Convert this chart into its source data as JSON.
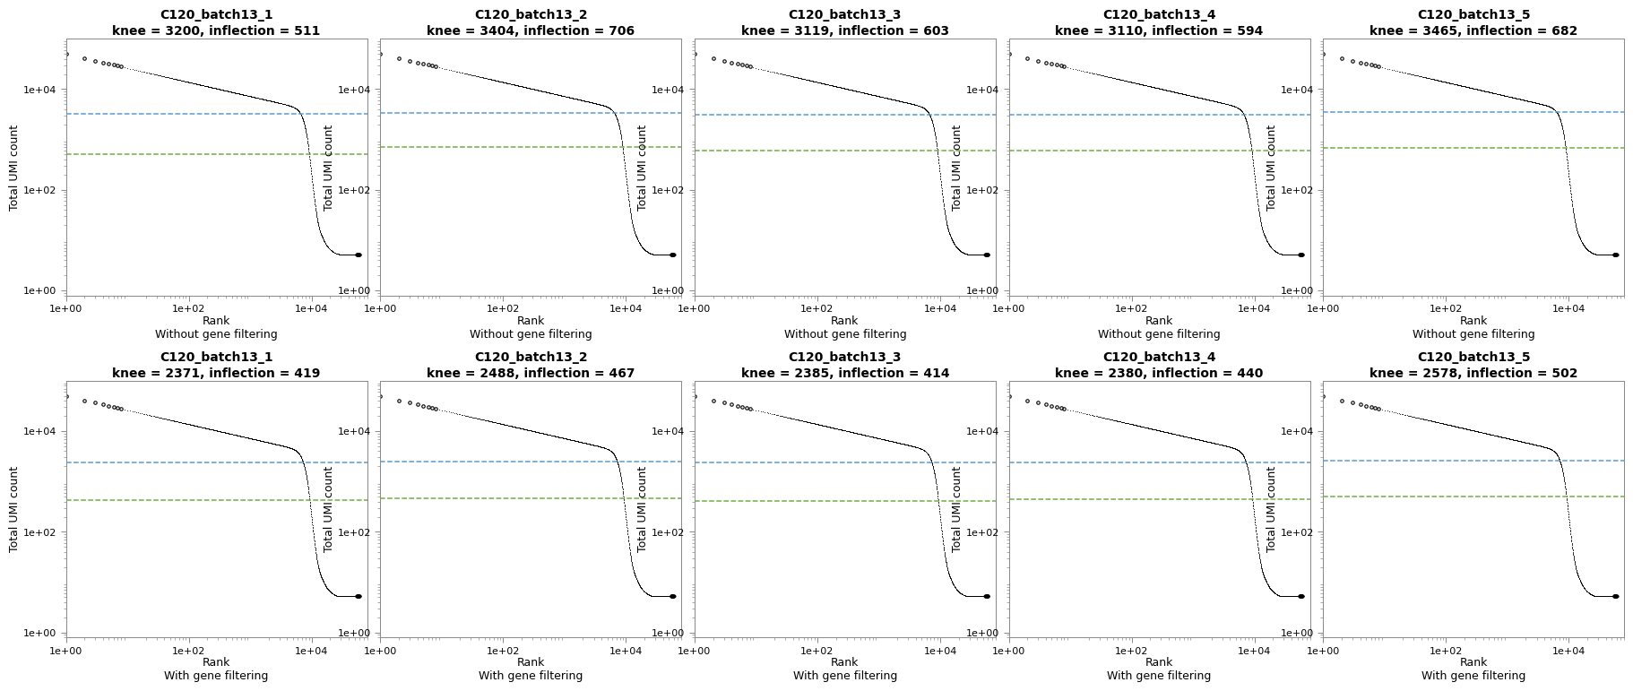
{
  "panels": [
    {
      "row": 0,
      "col": 0,
      "title": "C120_batch13_1",
      "subtitle": "knee = 3200, inflection = 511",
      "knee": 3200,
      "inflection": 511,
      "xlabel": "Rank",
      "xlabel2": "Without gene filtering"
    },
    {
      "row": 0,
      "col": 1,
      "title": "C120_batch13_2",
      "subtitle": "knee = 3404, inflection = 706",
      "knee": 3404,
      "inflection": 706,
      "xlabel": "Rank",
      "xlabel2": "Without gene filtering"
    },
    {
      "row": 0,
      "col": 2,
      "title": "C120_batch13_3",
      "subtitle": "knee = 3119, inflection = 603",
      "knee": 3119,
      "inflection": 603,
      "xlabel": "Rank",
      "xlabel2": "Without gene filtering"
    },
    {
      "row": 0,
      "col": 3,
      "title": "C120_batch13_4",
      "subtitle": "knee = 3110, inflection = 594",
      "knee": 3110,
      "inflection": 594,
      "xlabel": "Rank",
      "xlabel2": "Without gene filtering"
    },
    {
      "row": 0,
      "col": 4,
      "title": "C120_batch13_5",
      "subtitle": "knee = 3465, inflection = 682",
      "knee": 3465,
      "inflection": 682,
      "xlabel": "Rank",
      "xlabel2": "Without gene filtering"
    },
    {
      "row": 1,
      "col": 0,
      "title": "C120_batch13_1",
      "subtitle": "knee = 2371, inflection = 419",
      "knee": 2371,
      "inflection": 419,
      "xlabel": "Rank",
      "xlabel2": "With gene filtering"
    },
    {
      "row": 1,
      "col": 1,
      "title": "C120_batch13_2",
      "subtitle": "knee = 2488, inflection = 467",
      "knee": 2488,
      "inflection": 467,
      "xlabel": "Rank",
      "xlabel2": "With gene filtering"
    },
    {
      "row": 1,
      "col": 2,
      "title": "C120_batch13_3",
      "subtitle": "knee = 2385, inflection = 414",
      "knee": 2385,
      "inflection": 414,
      "xlabel": "Rank",
      "xlabel2": "With gene filtering"
    },
    {
      "row": 1,
      "col": 3,
      "title": "C120_batch13_4",
      "subtitle": "knee = 2380, inflection = 440",
      "knee": 2380,
      "inflection": 440,
      "xlabel": "Rank",
      "xlabel2": "With gene filtering"
    },
    {
      "row": 1,
      "col": 4,
      "title": "C120_batch13_5",
      "subtitle": "knee = 2578, inflection = 502",
      "knee": 2578,
      "inflection": 502,
      "xlabel": "Rank",
      "xlabel2": "With gene filtering"
    }
  ],
  "blue_color": "#5b9bd5",
  "green_color": "#70ad47",
  "curve_color": "#000000",
  "background_color": "#ffffff",
  "title_fontsize": 10,
  "axis_label_fontsize": 9,
  "tick_fontsize": 8,
  "ylabel": "Total UMI count",
  "xlim_log": [
    1,
    80000
  ],
  "ylim_log": [
    0.8,
    100000
  ]
}
